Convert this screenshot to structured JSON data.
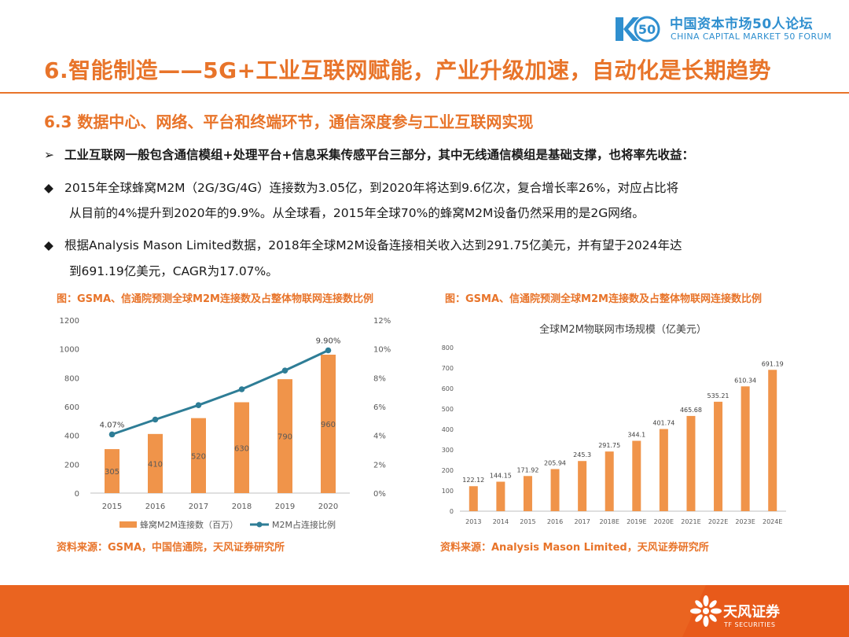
{
  "header": {
    "logo_mark_text": "50",
    "logo_cn": "中国资本市场50人论坛",
    "logo_en": "CHINA CAPITAL MARKET 50 FORUM"
  },
  "title": "6.智能制造——5G+工业互联网赋能，产业升级加速，自动化是长期趋势",
  "subtitle": "6.3 数据中心、网络、平台和终端环节，通信深度参与工业互联网实现",
  "bullets": {
    "b1_mark": "➢",
    "b1": "工业互联网一般包含通信模组+处理平台+信息采集传感平台三部分，其中无线通信模组是基础支撑，也将率先收益：",
    "b2_mark": "◆",
    "b2_line1": "2015年全球蜂窝M2M（2G/3G/4G）连接数为3.05亿，到2020年将达到9.6亿次，复合增长率26%，对应占比将",
    "b2_line2": "从目前的4%提升到2020年的9.9%。从全球看，2015年全球70%的蜂窝M2M设备仍然采用的是2G网络。",
    "b3_mark": "◆",
    "b3_line1": "根据Analysis Mason Limited数据，2018年全球M2M设备连接相关收入达到291.75亿美元，并有望于2024年达",
    "b3_line2": "到691.19亿美元，CAGR为17.07%。"
  },
  "figures": {
    "left_caption": "图：GSMA、信通院预测全球M2M连接数及占整体物联网连接数比例",
    "right_caption": "图：GSMA、信通院预测全球M2M连接数及占整体物联网连接数比例",
    "left_source": "资料来源：GSMA，中国信通院，天风证券研究所",
    "right_source": "资料来源：Analysis Mason Limited，天风证券研究所"
  },
  "footer": {
    "brand_cn": "天风证券",
    "brand_en": "TF SECURITIES"
  },
  "colors": {
    "accent": "#e8742a",
    "bar": "#f0944a",
    "line": "#2e7d96",
    "footer": "#ea6420",
    "logo_blue": "#2f8fcf"
  },
  "chart_data": [
    {
      "type": "bar",
      "title": "",
      "categories": [
        "2015",
        "2016",
        "2017",
        "2018",
        "2019",
        "2020"
      ],
      "series": [
        {
          "name": "蜂窝M2M连接数（百万）",
          "type": "bar",
          "axis": "left",
          "values": [
            305,
            410,
            520,
            630,
            790,
            960
          ],
          "labels": [
            "305",
            "410",
            "520",
            "630",
            "790",
            "960"
          ]
        },
        {
          "name": "M2M占连接比例",
          "type": "line",
          "axis": "right",
          "values": [
            4.07,
            5.1,
            6.1,
            7.2,
            8.5,
            9.9
          ],
          "labels": [
            "4.07%",
            "",
            "",
            "",
            "",
            "9.90%"
          ]
        }
      ],
      "ylim_left": [
        0,
        1200
      ],
      "yticks_left": [
        "0",
        "200",
        "400",
        "600",
        "800",
        "1000",
        "1200"
      ],
      "ylim_right": [
        0,
        12
      ],
      "yticks_right": [
        "0%",
        "2%",
        "4%",
        "6%",
        "8%",
        "10%",
        "12%"
      ],
      "legend": "bottom",
      "grid": false
    },
    {
      "type": "bar",
      "title": "全球M2M物联网市场规模（亿美元）",
      "categories": [
        "2013",
        "2014",
        "2015",
        "2016",
        "2017",
        "2018E",
        "2019E",
        "2020E",
        "2021E",
        "2022E",
        "2023E",
        "2024E"
      ],
      "values": [
        122.12,
        144.15,
        171.92,
        205.94,
        245.3,
        291.75,
        344.1,
        401.74,
        465.68,
        535.21,
        610.34,
        691.19
      ],
      "labels": [
        "122.12",
        "144.15",
        "171.92",
        "205.94",
        "245.3",
        "291.75",
        "344.1",
        "401.74",
        "465.68",
        "535.21",
        "610.34",
        "691.19"
      ],
      "ylim": [
        0,
        800
      ],
      "yticks": [
        "0",
        "100",
        "200",
        "300",
        "400",
        "500",
        "600",
        "700",
        "800"
      ],
      "grid": false
    }
  ]
}
